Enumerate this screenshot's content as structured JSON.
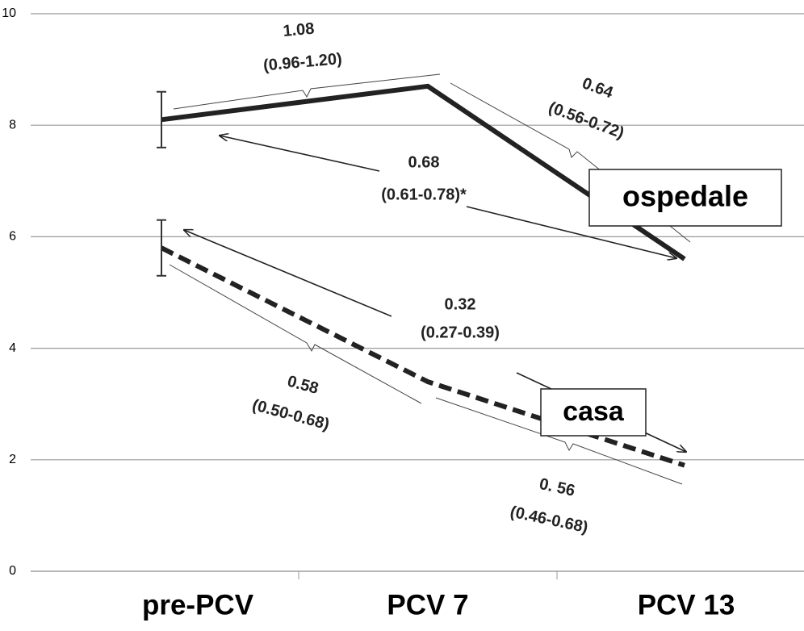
{
  "chart_data": {
    "type": "line",
    "categories": [
      "pre-PCV",
      "PCV 7",
      "PCV 13"
    ],
    "series": [
      {
        "name": "ospedale",
        "color": "#222222",
        "dash": false,
        "values": [
          8.1,
          8.7,
          5.6
        ],
        "errors": [
          0.5,
          null,
          null
        ]
      },
      {
        "name": "casa",
        "color": "#222222",
        "dash": true,
        "values": [
          5.8,
          3.4,
          1.9
        ],
        "errors": [
          0.5,
          null,
          null
        ]
      }
    ],
    "ylim": [
      0,
      10
    ],
    "yticks": [
      0,
      2,
      4,
      6,
      8,
      10
    ],
    "grid": true,
    "annotations": [
      "1.08",
      "(0.96-1.20)",
      "0.64",
      "(0.56-0.72)",
      "0.68",
      "(0.61-0.78)*",
      "0.32",
      "(0.27-0.39)",
      "0.58",
      "(0.50-0.68)",
      "0. 56",
      "(0.46-0.68)"
    ]
  }
}
